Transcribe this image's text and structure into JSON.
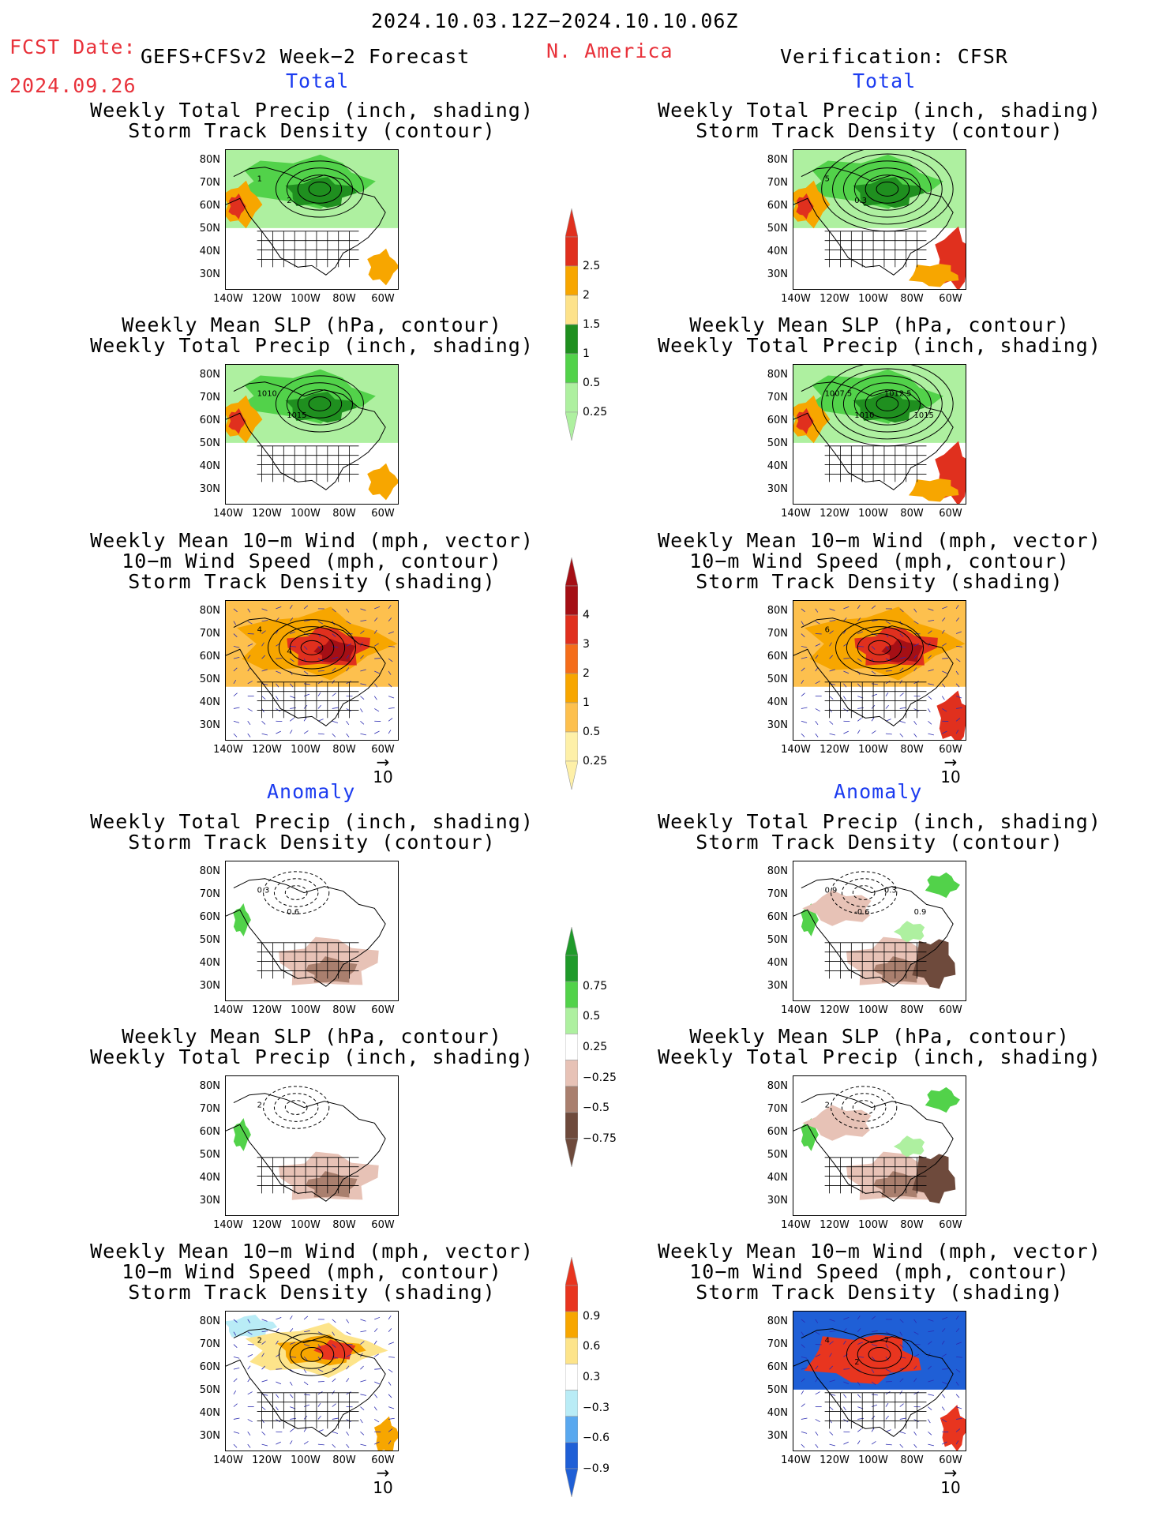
{
  "header": {
    "date_range": "2024.10.03.12Z−2024.10.10.06Z",
    "fcst_date_label": "FCST Date:",
    "fcst_date": "2024.09.26",
    "model": "GEFS+CFSv2 Week−2 Forecast",
    "region": "N. America",
    "verification": "Verification: CFSR"
  },
  "sections": {
    "total_left": "Total",
    "total_right": "Total",
    "anomaly_left": "Anomaly",
    "anomaly_right": "Anomaly"
  },
  "panel_titles": {
    "precip_storm": [
      "Weekly Total Precip (inch, shading)",
      "Storm Track Density (contour)"
    ],
    "slp_precip": [
      "Weekly Mean SLP (hPa, contour)",
      "Weekly Total Precip (inch, shading)"
    ],
    "wind_storm": [
      "Weekly Mean 10−m Wind (mph, vector)",
      "10−m Wind Speed (mph, contour)",
      "Storm Track Density (shading)"
    ]
  },
  "axes": {
    "lat_ticks": [
      "80N",
      "70N",
      "60N",
      "50N",
      "40N",
      "30N"
    ],
    "lon_ticks": [
      "140W",
      "120W",
      "100W",
      "80W",
      "60W"
    ]
  },
  "vector_ref": "10",
  "map_labels": {
    "fc_total_precip": [
      "1",
      "2"
    ],
    "ver_total_precip": [
      "5",
      "0.3"
    ],
    "fc_total_slp": [
      "1010",
      "1015"
    ],
    "ver_total_slp": [
      "1007.5",
      "1010",
      "1012.5",
      "1015"
    ],
    "fc_total_wind": [
      "4",
      "4"
    ],
    "ver_total_wind": [
      "6"
    ],
    "fc_anom_precip": [
      "0.3",
      "0.6"
    ],
    "ver_anom_precip": [
      "0.9",
      "-0.6",
      "0.3",
      "0.9"
    ],
    "fc_anom_slp": [
      "2"
    ],
    "ver_anom_slp": [
      "2"
    ],
    "fc_anom_wind": [
      "2"
    ],
    "ver_anom_wind": [
      "4",
      "2",
      "7"
    ]
  },
  "colorbars": {
    "total_precip": {
      "labels": [
        "2.5",
        "2",
        "1.5",
        "1",
        "0.5",
        "0.25"
      ],
      "colors": [
        "#e0301e",
        "#f7a600",
        "#fde28a",
        "#1f8f1f",
        "#52d24a",
        "#aef0a0"
      ]
    },
    "total_storm": {
      "labels": [
        "4",
        "3",
        "2",
        "1",
        "0.5",
        "0.25"
      ],
      "colors": [
        "#a50f15",
        "#e0301e",
        "#f46d1a",
        "#f7a600",
        "#fdc04e",
        "#fef0a8"
      ]
    },
    "anom_precip": {
      "labels": [
        "0.75",
        "0.5",
        "0.25",
        "−0.25",
        "−0.5",
        "−0.75"
      ],
      "colors": [
        "#1f9a2a",
        "#52d24a",
        "#aef0a0",
        "#ffffff",
        "#e7c2b6",
        "#a97f6e",
        "#6e4a3c"
      ]
    },
    "anom_storm": {
      "labels": [
        "0.9",
        "0.6",
        "0.3",
        "−0.3",
        "−0.6",
        "−0.9"
      ],
      "colors": [
        "#e8351f",
        "#f7a600",
        "#fde48a",
        "#ffffff",
        "#b9ecf6",
        "#59a8ef",
        "#1f5fd6"
      ]
    }
  }
}
